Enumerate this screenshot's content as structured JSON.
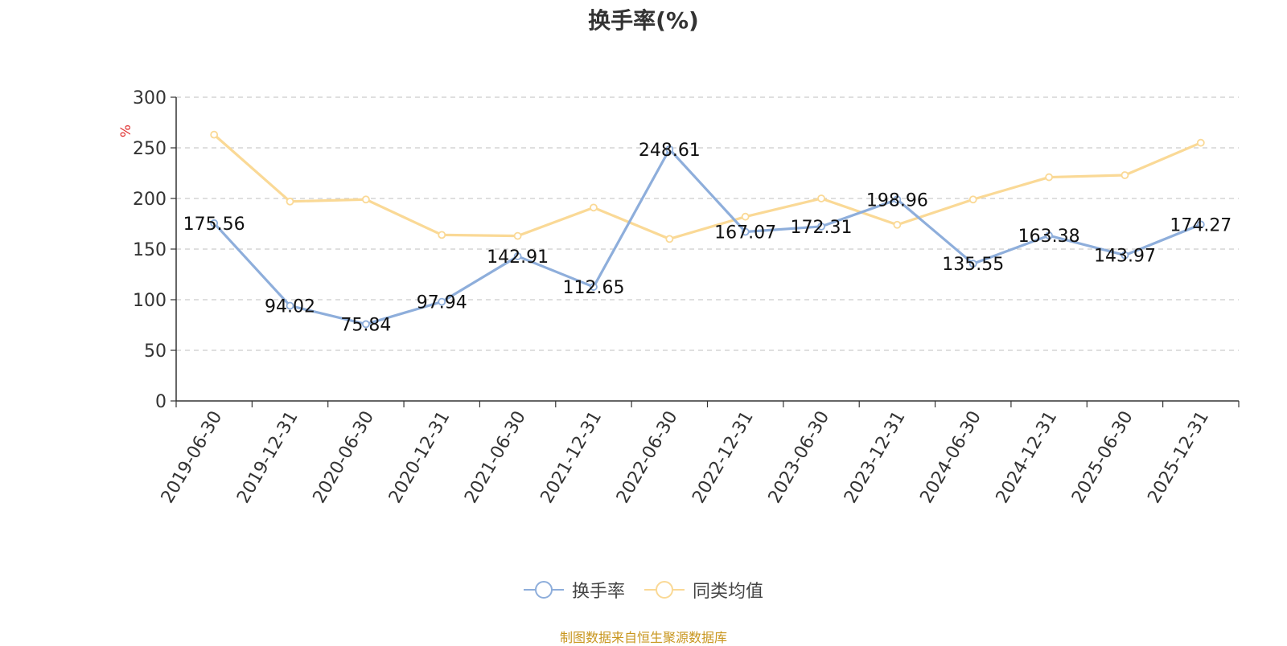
{
  "chart_data": {
    "type": "line",
    "title": "换手率(%)",
    "ylabel": "%",
    "xlabel": "",
    "ylim": [
      0,
      300
    ],
    "yticks": [
      0,
      50,
      100,
      150,
      200,
      250,
      300
    ],
    "grid": true,
    "legend_position": "bottom-center",
    "categories": [
      "2019-06-30",
      "2019-12-31",
      "2020-06-30",
      "2020-12-31",
      "2021-06-30",
      "2021-12-31",
      "2022-06-30",
      "2022-12-31",
      "2023-06-30",
      "2023-12-31",
      "2024-06-30",
      "2024-12-31",
      "2025-06-30",
      "2025-12-31"
    ],
    "series": [
      {
        "name": "换手率",
        "color": "#8eaedb",
        "labels": true,
        "values": [
          175.56,
          94.02,
          75.84,
          97.94,
          142.91,
          112.65,
          248.61,
          167.07,
          172.31,
          198.96,
          135.55,
          163.38,
          143.97,
          174.27
        ]
      },
      {
        "name": "同类均值",
        "color": "#fad996",
        "labels": false,
        "values": [
          263,
          197,
          199,
          164,
          163,
          191,
          160,
          182,
          200,
          174,
          199,
          221,
          223,
          255
        ]
      }
    ]
  },
  "source_note": "制图数据来自恒生聚源数据库",
  "colors": {
    "axis": "#333333",
    "grid": "#cccccc",
    "ylabel": "#e03030",
    "source": "#c8961e"
  }
}
